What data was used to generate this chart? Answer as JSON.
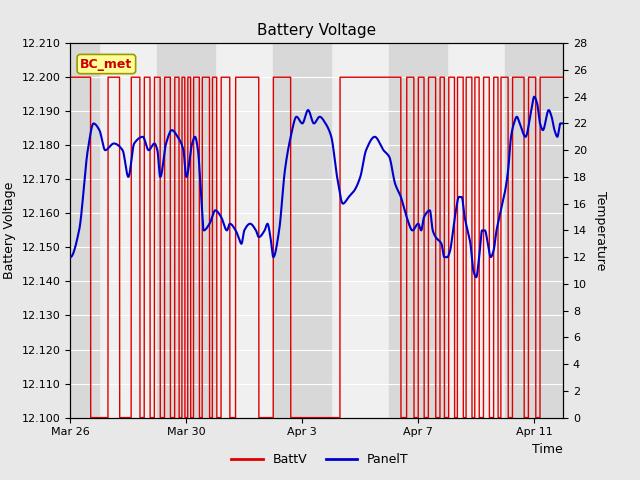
{
  "title": "Battery Voltage",
  "xlabel": "Time",
  "ylabel_left": "Battery Voltage",
  "ylabel_right": "Temperature",
  "ylim_left": [
    12.1,
    12.21
  ],
  "ylim_right": [
    0,
    28
  ],
  "annotation_text": "BC_met",
  "annotation_color": "#cc0000",
  "annotation_bg": "#ffff99",
  "annotation_border": "#999900",
  "bg_color": "#e8e8e8",
  "plot_bg": "#f0f0f0",
  "stripe_color": "#d8d8d8",
  "legend_items": [
    "BattV",
    "PanelT"
  ],
  "battv_color": "#dd0000",
  "panelt_color": "#0000cc",
  "xtick_labels": [
    "Mar 26",
    "Mar 30",
    "Apr 3",
    "Apr 7",
    "Apr 11"
  ],
  "ytick_left": [
    12.1,
    12.11,
    12.12,
    12.13,
    12.14,
    12.15,
    12.16,
    12.17,
    12.18,
    12.19,
    12.2,
    12.21
  ],
  "ytick_right": [
    0,
    2,
    4,
    6,
    8,
    10,
    12,
    14,
    16,
    18,
    20,
    22,
    24,
    26,
    28
  ],
  "xlim": [
    0,
    17
  ],
  "xtick_positions": [
    0,
    4,
    8,
    12,
    16
  ],
  "n_days": 17,
  "high_segments": [
    [
      0.0,
      0.7
    ],
    [
      1.3,
      1.7
    ],
    [
      2.1,
      2.4
    ],
    [
      2.55,
      2.75
    ],
    [
      2.9,
      3.1
    ],
    [
      3.25,
      3.45
    ],
    [
      3.6,
      3.75
    ],
    [
      3.85,
      3.95
    ],
    [
      4.05,
      4.15
    ],
    [
      4.25,
      4.45
    ],
    [
      4.55,
      4.8
    ],
    [
      4.9,
      5.05
    ],
    [
      5.2,
      5.5
    ],
    [
      5.7,
      6.5
    ],
    [
      7.0,
      7.6
    ],
    [
      9.3,
      11.4
    ],
    [
      11.6,
      11.85
    ],
    [
      12.0,
      12.2
    ],
    [
      12.35,
      12.6
    ],
    [
      12.75,
      12.9
    ],
    [
      13.05,
      13.25
    ],
    [
      13.35,
      13.55
    ],
    [
      13.65,
      13.85
    ],
    [
      13.95,
      14.1
    ],
    [
      14.25,
      14.45
    ],
    [
      14.6,
      14.75
    ],
    [
      14.85,
      15.1
    ],
    [
      15.25,
      15.65
    ],
    [
      15.8,
      16.05
    ],
    [
      16.2,
      17.0
    ]
  ],
  "panelt_data": [
    [
      0.0,
      12.0
    ],
    [
      0.3,
      14.0
    ],
    [
      0.6,
      20.0
    ],
    [
      0.8,
      22.0
    ],
    [
      1.0,
      21.5
    ],
    [
      1.2,
      20.0
    ],
    [
      1.5,
      20.5
    ],
    [
      1.8,
      20.0
    ],
    [
      2.0,
      18.0
    ],
    [
      2.2,
      20.5
    ],
    [
      2.5,
      21.0
    ],
    [
      2.7,
      20.0
    ],
    [
      2.9,
      20.5
    ],
    [
      3.0,
      20.0
    ],
    [
      3.1,
      18.0
    ],
    [
      3.3,
      20.5
    ],
    [
      3.5,
      21.5
    ],
    [
      3.7,
      21.0
    ],
    [
      3.9,
      20.0
    ],
    [
      4.0,
      18.0
    ],
    [
      4.2,
      20.5
    ],
    [
      4.3,
      21.0
    ],
    [
      4.4,
      20.0
    ],
    [
      4.5,
      17.0
    ],
    [
      4.6,
      14.0
    ],
    [
      4.8,
      14.5
    ],
    [
      5.0,
      15.5
    ],
    [
      5.2,
      15.0
    ],
    [
      5.4,
      14.0
    ],
    [
      5.5,
      14.5
    ],
    [
      5.7,
      14.0
    ],
    [
      5.8,
      13.5
    ],
    [
      5.9,
      13.0
    ],
    [
      6.0,
      14.0
    ],
    [
      6.2,
      14.5
    ],
    [
      6.4,
      14.0
    ],
    [
      6.5,
      13.5
    ],
    [
      6.7,
      14.0
    ],
    [
      6.8,
      14.5
    ],
    [
      6.9,
      13.5
    ],
    [
      7.0,
      12.0
    ],
    [
      7.2,
      14.0
    ],
    [
      7.4,
      18.5
    ],
    [
      7.6,
      21.0
    ],
    [
      7.8,
      22.5
    ],
    [
      8.0,
      22.0
    ],
    [
      8.2,
      23.0
    ],
    [
      8.4,
      22.0
    ],
    [
      8.6,
      22.5
    ],
    [
      8.8,
      22.0
    ],
    [
      9.0,
      21.0
    ],
    [
      9.2,
      18.0
    ],
    [
      9.4,
      16.0
    ],
    [
      9.6,
      16.5
    ],
    [
      9.8,
      17.0
    ],
    [
      10.0,
      18.0
    ],
    [
      10.2,
      20.0
    ],
    [
      10.5,
      21.0
    ],
    [
      10.8,
      20.0
    ],
    [
      11.0,
      19.5
    ],
    [
      11.2,
      17.5
    ],
    [
      11.4,
      16.5
    ],
    [
      11.6,
      15.0
    ],
    [
      11.8,
      14.0
    ],
    [
      12.0,
      14.5
    ],
    [
      12.1,
      14.0
    ],
    [
      12.2,
      15.0
    ],
    [
      12.4,
      15.5
    ],
    [
      12.5,
      14.0
    ],
    [
      12.6,
      13.5
    ],
    [
      12.8,
      13.0
    ],
    [
      12.9,
      12.0
    ],
    [
      13.0,
      12.0
    ],
    [
      13.1,
      12.5
    ],
    [
      13.2,
      14.0
    ],
    [
      13.3,
      15.5
    ],
    [
      13.4,
      16.5
    ],
    [
      13.5,
      16.5
    ],
    [
      13.6,
      15.0
    ],
    [
      13.7,
      14.0
    ],
    [
      13.8,
      13.0
    ],
    [
      13.9,
      11.0
    ],
    [
      14.0,
      10.5
    ],
    [
      14.1,
      12.0
    ],
    [
      14.2,
      14.0
    ],
    [
      14.3,
      14.0
    ],
    [
      14.4,
      13.0
    ],
    [
      14.5,
      12.0
    ],
    [
      14.6,
      12.5
    ],
    [
      14.7,
      14.0
    ],
    [
      14.8,
      15.0
    ],
    [
      14.9,
      16.0
    ],
    [
      15.0,
      17.0
    ],
    [
      15.1,
      18.5
    ],
    [
      15.2,
      21.0
    ],
    [
      15.3,
      22.0
    ],
    [
      15.4,
      22.5
    ],
    [
      15.5,
      22.0
    ],
    [
      15.7,
      21.0
    ],
    [
      15.9,
      23.0
    ],
    [
      16.0,
      24.0
    ],
    [
      16.1,
      23.5
    ],
    [
      16.2,
      22.0
    ],
    [
      16.3,
      21.5
    ],
    [
      16.5,
      23.0
    ],
    [
      16.6,
      22.5
    ],
    [
      16.7,
      21.5
    ],
    [
      16.8,
      21.0
    ],
    [
      16.9,
      22.0
    ],
    [
      17.0,
      22.0
    ]
  ]
}
